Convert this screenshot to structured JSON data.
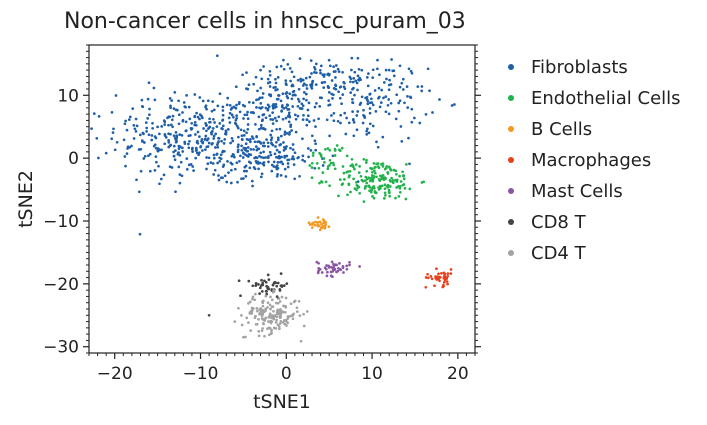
{
  "chart_data": {
    "type": "scatter",
    "title": "Non-cancer cells in hnscc_puram_03",
    "xlabel": "tSNE1",
    "ylabel": "tSNE2",
    "xlim": [
      -23,
      22
    ],
    "ylim": [
      -31,
      18
    ],
    "xticks": [
      -20,
      -10,
      0,
      10,
      20
    ],
    "yticks": [
      10,
      0,
      -10,
      -20,
      -30
    ],
    "grid": false,
    "legend_position": "outside-right",
    "series": [
      {
        "name": "Fibroblasts",
        "color": "#1f5fa8",
        "clusters": [
          {
            "cx": -9,
            "cy": 3,
            "sx": 5.2,
            "sy": 3.6,
            "n": 380
          },
          {
            "cx": 0,
            "cy": 9,
            "sx": 2.8,
            "sy": 2.6,
            "n": 170
          },
          {
            "cx": 10,
            "cy": 9,
            "sx": 3.2,
            "sy": 3.3,
            "n": 150
          },
          {
            "cx": -2,
            "cy": 0,
            "sx": 2.8,
            "sy": 1.8,
            "n": 120
          },
          {
            "cx": 5,
            "cy": 13,
            "sx": 3,
            "sy": 1.6,
            "n": 60
          },
          {
            "cx": -13,
            "cy": 6,
            "sx": 3,
            "sy": 3,
            "n": 60
          }
        ],
        "points": [
          [
            -21,
            0.8
          ],
          [
            -16,
            12
          ],
          [
            3.5,
            15
          ],
          [
            12,
            14
          ],
          [
            -3,
            14
          ]
        ]
      },
      {
        "name": "Endothelial Cells",
        "color": "#22b24c",
        "clusters": [
          {
            "cx": 10.5,
            "cy": -3.5,
            "sx": 2.4,
            "sy": 1.6,
            "n": 170
          },
          {
            "cx": 5,
            "cy": 0,
            "sx": 1.3,
            "sy": 1.2,
            "n": 30
          }
        ],
        "points": [
          [
            3,
            -1.5
          ],
          [
            14,
            -1
          ]
        ]
      },
      {
        "name": "B Cells",
        "color": "#f39a24",
        "clusters": [
          {
            "cx": 4,
            "cy": -10.3,
            "sx": 0.6,
            "sy": 0.55,
            "n": 30
          }
        ],
        "points": []
      },
      {
        "name": "Macrophages",
        "color": "#e8401c",
        "clusters": [
          {
            "cx": 18,
            "cy": -19,
            "sx": 0.85,
            "sy": 0.65,
            "n": 40
          }
        ],
        "points": []
      },
      {
        "name": "Mast Cells",
        "color": "#8a55a3",
        "clusters": [
          {
            "cx": 5.5,
            "cy": -17.5,
            "sx": 0.95,
            "sy": 0.6,
            "n": 45
          }
        ],
        "points": []
      },
      {
        "name": "CD8 T",
        "color": "#444444",
        "clusters": [
          {
            "cx": -1.8,
            "cy": -20.3,
            "sx": 1.1,
            "sy": 0.75,
            "n": 45
          }
        ],
        "points": [
          [
            -5.5,
            -19.5
          ],
          [
            -9,
            -25
          ]
        ]
      },
      {
        "name": "CD4 T",
        "color": "#a3a3a3",
        "clusters": [
          {
            "cx": -1.8,
            "cy": -24.8,
            "sx": 1.7,
            "sy": 1.5,
            "n": 170
          }
        ],
        "points": [
          [
            -5,
            -28.5
          ],
          [
            -6,
            -26
          ]
        ]
      }
    ]
  }
}
